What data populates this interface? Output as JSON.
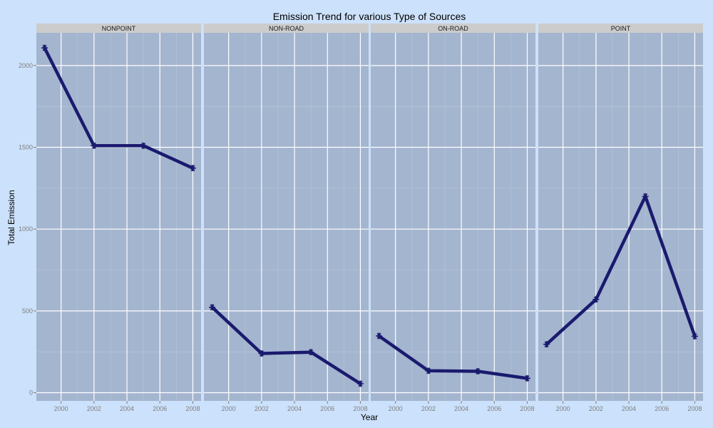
{
  "chart_data": {
    "type": "line",
    "title": "Emission Trend for various Type of Sources",
    "xlabel": "Year",
    "ylabel": "Total Emission",
    "x": [
      1999,
      2002,
      2005,
      2008
    ],
    "xlim": [
      1998.5,
      2008.5
    ],
    "ylim": [
      -50,
      2200
    ],
    "x_ticks": [
      2000,
      2002,
      2004,
      2006,
      2008
    ],
    "y_ticks": [
      0,
      500,
      1000,
      1500,
      2000
    ],
    "grid": true,
    "legend": "none",
    "panels": [
      {
        "name": "NONPOINT",
        "values": [
          2108,
          1510,
          1510,
          1373
        ]
      },
      {
        "name": "NON-ROAD",
        "values": [
          522,
          240,
          248,
          55
        ]
      },
      {
        "name": "ON-ROAD",
        "values": [
          347,
          134,
          131,
          88
        ]
      },
      {
        "name": "POINT",
        "values": [
          296,
          570,
          1200,
          345
        ]
      }
    ],
    "colors": {
      "background": "#cce1fb",
      "panel": "#a4b5cf",
      "strip": "#cccccc",
      "grid_major": "#ffffff",
      "line": "#1a1a6e"
    }
  }
}
